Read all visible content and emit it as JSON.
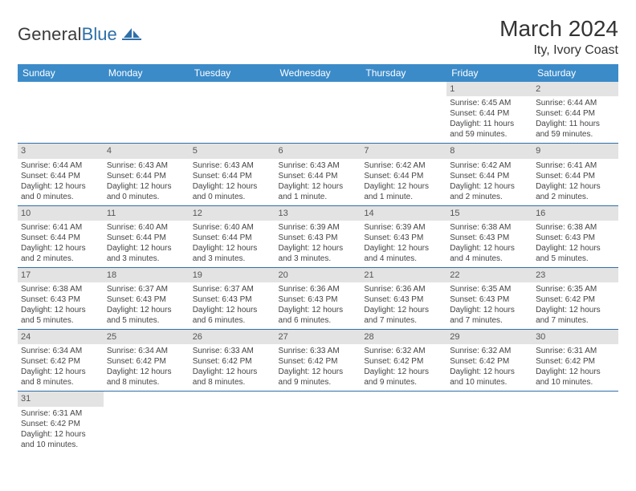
{
  "logo": {
    "general": "General",
    "blue": "Blue"
  },
  "header": {
    "month_title": "March 2024",
    "location": "Ity, Ivory Coast"
  },
  "colors": {
    "header_bg": "#3b8bc9",
    "header_text": "#ffffff",
    "daynum_bg": "#e3e3e3",
    "row_border": "#2f6fa8",
    "logo_blue": "#2f6fa8",
    "body_text": "#333333"
  },
  "weekdays": [
    "Sunday",
    "Monday",
    "Tuesday",
    "Wednesday",
    "Thursday",
    "Friday",
    "Saturday"
  ],
  "weeks": [
    [
      null,
      null,
      null,
      null,
      null,
      {
        "day": "1",
        "sunrise": "Sunrise: 6:45 AM",
        "sunset": "Sunset: 6:44 PM",
        "daylight1": "Daylight: 11 hours",
        "daylight2": "and 59 minutes."
      },
      {
        "day": "2",
        "sunrise": "Sunrise: 6:44 AM",
        "sunset": "Sunset: 6:44 PM",
        "daylight1": "Daylight: 11 hours",
        "daylight2": "and 59 minutes."
      }
    ],
    [
      {
        "day": "3",
        "sunrise": "Sunrise: 6:44 AM",
        "sunset": "Sunset: 6:44 PM",
        "daylight1": "Daylight: 12 hours",
        "daylight2": "and 0 minutes."
      },
      {
        "day": "4",
        "sunrise": "Sunrise: 6:43 AM",
        "sunset": "Sunset: 6:44 PM",
        "daylight1": "Daylight: 12 hours",
        "daylight2": "and 0 minutes."
      },
      {
        "day": "5",
        "sunrise": "Sunrise: 6:43 AM",
        "sunset": "Sunset: 6:44 PM",
        "daylight1": "Daylight: 12 hours",
        "daylight2": "and 0 minutes."
      },
      {
        "day": "6",
        "sunrise": "Sunrise: 6:43 AM",
        "sunset": "Sunset: 6:44 PM",
        "daylight1": "Daylight: 12 hours",
        "daylight2": "and 1 minute."
      },
      {
        "day": "7",
        "sunrise": "Sunrise: 6:42 AM",
        "sunset": "Sunset: 6:44 PM",
        "daylight1": "Daylight: 12 hours",
        "daylight2": "and 1 minute."
      },
      {
        "day": "8",
        "sunrise": "Sunrise: 6:42 AM",
        "sunset": "Sunset: 6:44 PM",
        "daylight1": "Daylight: 12 hours",
        "daylight2": "and 2 minutes."
      },
      {
        "day": "9",
        "sunrise": "Sunrise: 6:41 AM",
        "sunset": "Sunset: 6:44 PM",
        "daylight1": "Daylight: 12 hours",
        "daylight2": "and 2 minutes."
      }
    ],
    [
      {
        "day": "10",
        "sunrise": "Sunrise: 6:41 AM",
        "sunset": "Sunset: 6:44 PM",
        "daylight1": "Daylight: 12 hours",
        "daylight2": "and 2 minutes."
      },
      {
        "day": "11",
        "sunrise": "Sunrise: 6:40 AM",
        "sunset": "Sunset: 6:44 PM",
        "daylight1": "Daylight: 12 hours",
        "daylight2": "and 3 minutes."
      },
      {
        "day": "12",
        "sunrise": "Sunrise: 6:40 AM",
        "sunset": "Sunset: 6:44 PM",
        "daylight1": "Daylight: 12 hours",
        "daylight2": "and 3 minutes."
      },
      {
        "day": "13",
        "sunrise": "Sunrise: 6:39 AM",
        "sunset": "Sunset: 6:43 PM",
        "daylight1": "Daylight: 12 hours",
        "daylight2": "and 3 minutes."
      },
      {
        "day": "14",
        "sunrise": "Sunrise: 6:39 AM",
        "sunset": "Sunset: 6:43 PM",
        "daylight1": "Daylight: 12 hours",
        "daylight2": "and 4 minutes."
      },
      {
        "day": "15",
        "sunrise": "Sunrise: 6:38 AM",
        "sunset": "Sunset: 6:43 PM",
        "daylight1": "Daylight: 12 hours",
        "daylight2": "and 4 minutes."
      },
      {
        "day": "16",
        "sunrise": "Sunrise: 6:38 AM",
        "sunset": "Sunset: 6:43 PM",
        "daylight1": "Daylight: 12 hours",
        "daylight2": "and 5 minutes."
      }
    ],
    [
      {
        "day": "17",
        "sunrise": "Sunrise: 6:38 AM",
        "sunset": "Sunset: 6:43 PM",
        "daylight1": "Daylight: 12 hours",
        "daylight2": "and 5 minutes."
      },
      {
        "day": "18",
        "sunrise": "Sunrise: 6:37 AM",
        "sunset": "Sunset: 6:43 PM",
        "daylight1": "Daylight: 12 hours",
        "daylight2": "and 5 minutes."
      },
      {
        "day": "19",
        "sunrise": "Sunrise: 6:37 AM",
        "sunset": "Sunset: 6:43 PM",
        "daylight1": "Daylight: 12 hours",
        "daylight2": "and 6 minutes."
      },
      {
        "day": "20",
        "sunrise": "Sunrise: 6:36 AM",
        "sunset": "Sunset: 6:43 PM",
        "daylight1": "Daylight: 12 hours",
        "daylight2": "and 6 minutes."
      },
      {
        "day": "21",
        "sunrise": "Sunrise: 6:36 AM",
        "sunset": "Sunset: 6:43 PM",
        "daylight1": "Daylight: 12 hours",
        "daylight2": "and 7 minutes."
      },
      {
        "day": "22",
        "sunrise": "Sunrise: 6:35 AM",
        "sunset": "Sunset: 6:43 PM",
        "daylight1": "Daylight: 12 hours",
        "daylight2": "and 7 minutes."
      },
      {
        "day": "23",
        "sunrise": "Sunrise: 6:35 AM",
        "sunset": "Sunset: 6:42 PM",
        "daylight1": "Daylight: 12 hours",
        "daylight2": "and 7 minutes."
      }
    ],
    [
      {
        "day": "24",
        "sunrise": "Sunrise: 6:34 AM",
        "sunset": "Sunset: 6:42 PM",
        "daylight1": "Daylight: 12 hours",
        "daylight2": "and 8 minutes."
      },
      {
        "day": "25",
        "sunrise": "Sunrise: 6:34 AM",
        "sunset": "Sunset: 6:42 PM",
        "daylight1": "Daylight: 12 hours",
        "daylight2": "and 8 minutes."
      },
      {
        "day": "26",
        "sunrise": "Sunrise: 6:33 AM",
        "sunset": "Sunset: 6:42 PM",
        "daylight1": "Daylight: 12 hours",
        "daylight2": "and 8 minutes."
      },
      {
        "day": "27",
        "sunrise": "Sunrise: 6:33 AM",
        "sunset": "Sunset: 6:42 PM",
        "daylight1": "Daylight: 12 hours",
        "daylight2": "and 9 minutes."
      },
      {
        "day": "28",
        "sunrise": "Sunrise: 6:32 AM",
        "sunset": "Sunset: 6:42 PM",
        "daylight1": "Daylight: 12 hours",
        "daylight2": "and 9 minutes."
      },
      {
        "day": "29",
        "sunrise": "Sunrise: 6:32 AM",
        "sunset": "Sunset: 6:42 PM",
        "daylight1": "Daylight: 12 hours",
        "daylight2": "and 10 minutes."
      },
      {
        "day": "30",
        "sunrise": "Sunrise: 6:31 AM",
        "sunset": "Sunset: 6:42 PM",
        "daylight1": "Daylight: 12 hours",
        "daylight2": "and 10 minutes."
      }
    ],
    [
      {
        "day": "31",
        "sunrise": "Sunrise: 6:31 AM",
        "sunset": "Sunset: 6:42 PM",
        "daylight1": "Daylight: 12 hours",
        "daylight2": "and 10 minutes."
      },
      null,
      null,
      null,
      null,
      null,
      null
    ]
  ]
}
